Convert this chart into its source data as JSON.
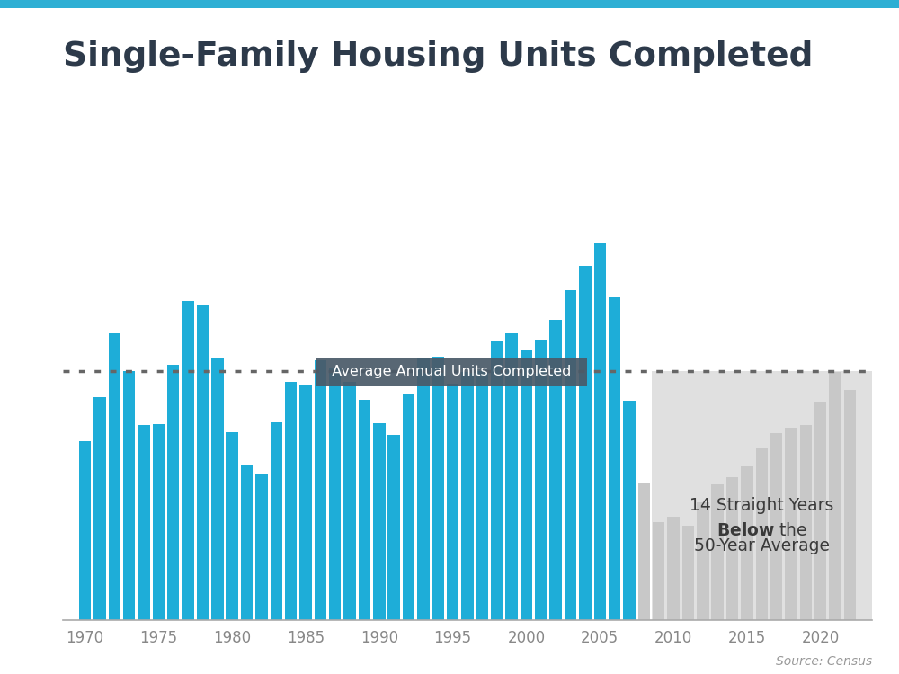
{
  "title": "Single-Family Housing Units Completed",
  "source": "Source: Census",
  "background_color": "#ffffff",
  "header_bar_color": "#2eafd4",
  "average_line_value": 1130,
  "average_label": "Average Annual Units Completed",
  "years": [
    1970,
    1971,
    1972,
    1973,
    1974,
    1975,
    1976,
    1977,
    1978,
    1979,
    1980,
    1981,
    1982,
    1983,
    1984,
    1985,
    1986,
    1987,
    1988,
    1989,
    1990,
    1991,
    1992,
    1993,
    1994,
    1995,
    1996,
    1997,
    1998,
    1999,
    2000,
    2001,
    2002,
    2003,
    2004,
    2005,
    2006,
    2007,
    2008,
    2009,
    2010,
    2011,
    2012,
    2013,
    2014,
    2015,
    2016,
    2017,
    2018,
    2019,
    2020,
    2021,
    2022
  ],
  "values": [
    813,
    1014,
    1309,
    1132,
    888,
    892,
    1162,
    1451,
    1433,
    1194,
    852,
    705,
    663,
    900,
    1084,
    1072,
    1179,
    1146,
    1081,
    1003,
    895,
    840,
    1030,
    1193,
    1198,
    1076,
    1129,
    1133,
    1271,
    1302,
    1230,
    1273,
    1363,
    1499,
    1611,
    1716,
    1465,
    995,
    622,
    445,
    471,
    431,
    535,
    618,
    648,
    697,
    783,
    849,
    876,
    888,
    991,
    1128,
    1047
  ],
  "blue_color": "#1eadd8",
  "gray_color": "#c8c8c8",
  "cutoff_year": 2008,
  "title_color": "#2d3a4a",
  "axis_color": "#888888",
  "dotted_line_color": "#666666",
  "avg_box_color": "#4a5a68",
  "annotation_gray_bg": "#c8c8c8",
  "annotation_text_color": "#3a3a3a",
  "ylim_max": 1900,
  "xlim_min": 1968.5,
  "xlim_max": 2023.5,
  "xticks": [
    1970,
    1975,
    1980,
    1985,
    1990,
    1995,
    2000,
    2005,
    2010,
    2015,
    2020
  ],
  "bar_width": 0.82
}
